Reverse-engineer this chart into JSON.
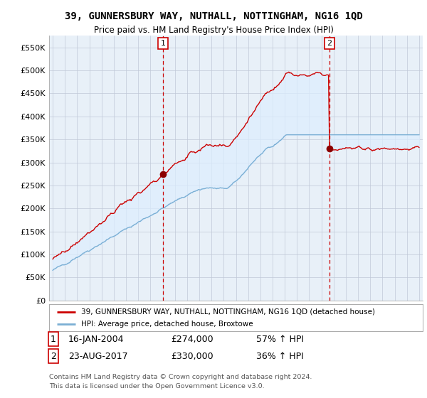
{
  "title": "39, GUNNERSBURY WAY, NUTHALL, NOTTINGHAM, NG16 1QD",
  "subtitle": "Price paid vs. HM Land Registry's House Price Index (HPI)",
  "ylabel_ticks": [
    "£0",
    "£50K",
    "£100K",
    "£150K",
    "£200K",
    "£250K",
    "£300K",
    "£350K",
    "£400K",
    "£450K",
    "£500K",
    "£550K"
  ],
  "ytick_values": [
    0,
    50000,
    100000,
    150000,
    200000,
    250000,
    300000,
    350000,
    400000,
    450000,
    500000,
    550000
  ],
  "ylim": [
    0,
    575000
  ],
  "xlim_left": 1994.7,
  "xlim_right": 2025.3,
  "purchase1_date": 2004.04,
  "purchase1_price": 274000,
  "purchase2_date": 2017.65,
  "purchase2_price": 330000,
  "red_line_color": "#cc0000",
  "blue_line_color": "#7bafd4",
  "fill_color": "#ddeeff",
  "marker_color": "#8b0000",
  "vline_color": "#cc0000",
  "plot_bg_color": "#e8f0f8",
  "legend_line1": "39, GUNNERSBURY WAY, NUTHALL, NOTTINGHAM, NG16 1QD (detached house)",
  "legend_line2": "HPI: Average price, detached house, Broxtowe",
  "table_row1_num": "1",
  "table_row1_date": "16-JAN-2004",
  "table_row1_price": "£274,000",
  "table_row1_hpi": "57% ↑ HPI",
  "table_row2_num": "2",
  "table_row2_date": "23-AUG-2017",
  "table_row2_price": "£330,000",
  "table_row2_hpi": "36% ↑ HPI",
  "footer_line1": "Contains HM Land Registry data © Crown copyright and database right 2024.",
  "footer_line2": "This data is licensed under the Open Government Licence v3.0.",
  "background_color": "#ffffff",
  "grid_color": "#c0c8d8"
}
